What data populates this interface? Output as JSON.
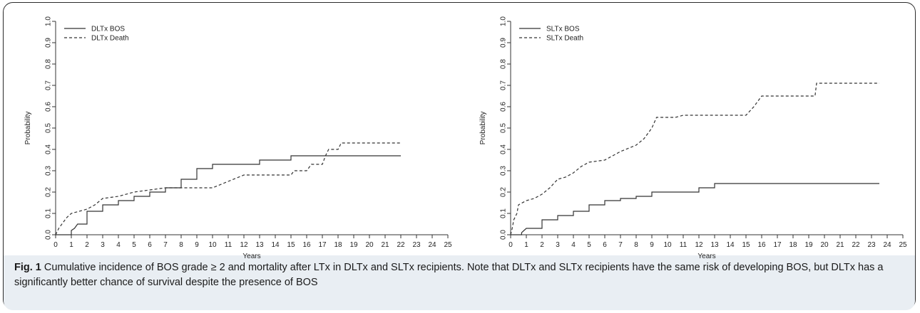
{
  "caption": {
    "label": "Fig. 1",
    "text": "Cumulative incidence of BOS grade ≥ 2 and mortality after LTx in DLTx and SLTx recipients. Note that DLTx and SLTx recipients have the same risk of developing BOS, but DLTx has a significantly better chance of survival despite the presence of BOS"
  },
  "colors": {
    "line": "#333333",
    "frame": "#2b2b2b",
    "caption_bg": "#e9eef3"
  },
  "chart_data": [
    {
      "type": "line",
      "step": true,
      "xlabel": "Years",
      "ylabel": "Probability",
      "xlim": [
        0,
        25
      ],
      "ylim": [
        0,
        1
      ],
      "xticks": [
        0,
        1,
        2,
        3,
        4,
        5,
        6,
        7,
        8,
        9,
        10,
        11,
        12,
        13,
        14,
        15,
        16,
        17,
        18,
        19,
        20,
        21,
        22,
        23,
        24,
        25
      ],
      "yticks": [
        0.0,
        0.1,
        0.2,
        0.3,
        0.4,
        0.5,
        0.6,
        0.7,
        0.8,
        0.9,
        1.0
      ],
      "legend_position": "top-left",
      "grid": false,
      "series": [
        {
          "name": "DLTx BOS",
          "style": "solid",
          "points": [
            [
              0,
              0
            ],
            [
              1,
              0
            ],
            [
              1,
              0.02
            ],
            [
              1.2,
              0.03
            ],
            [
              1.4,
              0.05
            ],
            [
              2,
              0.05
            ],
            [
              2,
              0.11
            ],
            [
              3,
              0.11
            ],
            [
              3,
              0.14
            ],
            [
              4,
              0.14
            ],
            [
              4,
              0.16
            ],
            [
              5,
              0.16
            ],
            [
              5,
              0.18
            ],
            [
              6,
              0.18
            ],
            [
              6,
              0.2
            ],
            [
              7,
              0.2
            ],
            [
              7,
              0.22
            ],
            [
              8,
              0.22
            ],
            [
              8,
              0.26
            ],
            [
              9,
              0.26
            ],
            [
              9,
              0.31
            ],
            [
              10,
              0.31
            ],
            [
              10,
              0.33
            ],
            [
              13,
              0.33
            ],
            [
              13,
              0.35
            ],
            [
              15,
              0.35
            ],
            [
              15,
              0.37
            ],
            [
              22,
              0.37
            ]
          ]
        },
        {
          "name": "DLTx Death",
          "style": "dashed",
          "points": [
            [
              0,
              0
            ],
            [
              0.2,
              0.03
            ],
            [
              0.5,
              0.06
            ],
            [
              0.7,
              0.08
            ],
            [
              1,
              0.1
            ],
            [
              1.5,
              0.11
            ],
            [
              2,
              0.12
            ],
            [
              2.5,
              0.14
            ],
            [
              3,
              0.17
            ],
            [
              4,
              0.18
            ],
            [
              5,
              0.2
            ],
            [
              6,
              0.21
            ],
            [
              7,
              0.22
            ],
            [
              10,
              0.22
            ],
            [
              11,
              0.25
            ],
            [
              12,
              0.28
            ],
            [
              15,
              0.28
            ],
            [
              15.2,
              0.3
            ],
            [
              16,
              0.3
            ],
            [
              16.3,
              0.33
            ],
            [
              17,
              0.33
            ],
            [
              17.2,
              0.37
            ],
            [
              17.4,
              0.4
            ],
            [
              18,
              0.4
            ],
            [
              18.2,
              0.43
            ],
            [
              22,
              0.43
            ]
          ]
        }
      ]
    },
    {
      "type": "line",
      "step": true,
      "xlabel": "Years",
      "ylabel": "Probability",
      "xlim": [
        0,
        25
      ],
      "ylim": [
        0,
        1
      ],
      "xticks": [
        0,
        1,
        2,
        3,
        4,
        5,
        6,
        7,
        8,
        9,
        10,
        11,
        12,
        13,
        14,
        15,
        16,
        17,
        18,
        19,
        20,
        21,
        22,
        23,
        24,
        25
      ],
      "yticks": [
        0.0,
        0.1,
        0.2,
        0.3,
        0.4,
        0.5,
        0.6,
        0.7,
        0.8,
        0.9,
        1.0
      ],
      "legend_position": "top-left",
      "grid": false,
      "series": [
        {
          "name": "SLTx BOS",
          "style": "solid",
          "points": [
            [
              0,
              0
            ],
            [
              0.7,
              0
            ],
            [
              0.7,
              0.01
            ],
            [
              1,
              0.03
            ],
            [
              2,
              0.03
            ],
            [
              2,
              0.07
            ],
            [
              3,
              0.07
            ],
            [
              3,
              0.09
            ],
            [
              4,
              0.09
            ],
            [
              4,
              0.11
            ],
            [
              5,
              0.11
            ],
            [
              5,
              0.14
            ],
            [
              6,
              0.14
            ],
            [
              6,
              0.16
            ],
            [
              7,
              0.16
            ],
            [
              7,
              0.17
            ],
            [
              8,
              0.17
            ],
            [
              8,
              0.18
            ],
            [
              9,
              0.18
            ],
            [
              9,
              0.2
            ],
            [
              12,
              0.2
            ],
            [
              12,
              0.22
            ],
            [
              13,
              0.22
            ],
            [
              13,
              0.24
            ],
            [
              23.5,
              0.24
            ]
          ]
        },
        {
          "name": "SLTx Death",
          "style": "dashed",
          "points": [
            [
              0,
              0
            ],
            [
              0.1,
              0.03
            ],
            [
              0.2,
              0.07
            ],
            [
              0.4,
              0.1
            ],
            [
              0.5,
              0.14
            ],
            [
              1,
              0.16
            ],
            [
              1.5,
              0.17
            ],
            [
              2,
              0.19
            ],
            [
              2.5,
              0.22
            ],
            [
              3,
              0.26
            ],
            [
              3.5,
              0.27
            ],
            [
              4,
              0.29
            ],
            [
              4.5,
              0.32
            ],
            [
              5,
              0.34
            ],
            [
              6,
              0.35
            ],
            [
              6.5,
              0.37
            ],
            [
              7,
              0.39
            ],
            [
              8,
              0.42
            ],
            [
              8.5,
              0.45
            ],
            [
              9,
              0.5
            ],
            [
              9.3,
              0.55
            ],
            [
              10.5,
              0.55
            ],
            [
              11,
              0.56
            ],
            [
              15,
              0.56
            ],
            [
              15.5,
              0.6
            ],
            [
              16,
              0.65
            ],
            [
              19.4,
              0.65
            ],
            [
              19.5,
              0.71
            ],
            [
              23.5,
              0.71
            ]
          ]
        }
      ]
    }
  ]
}
